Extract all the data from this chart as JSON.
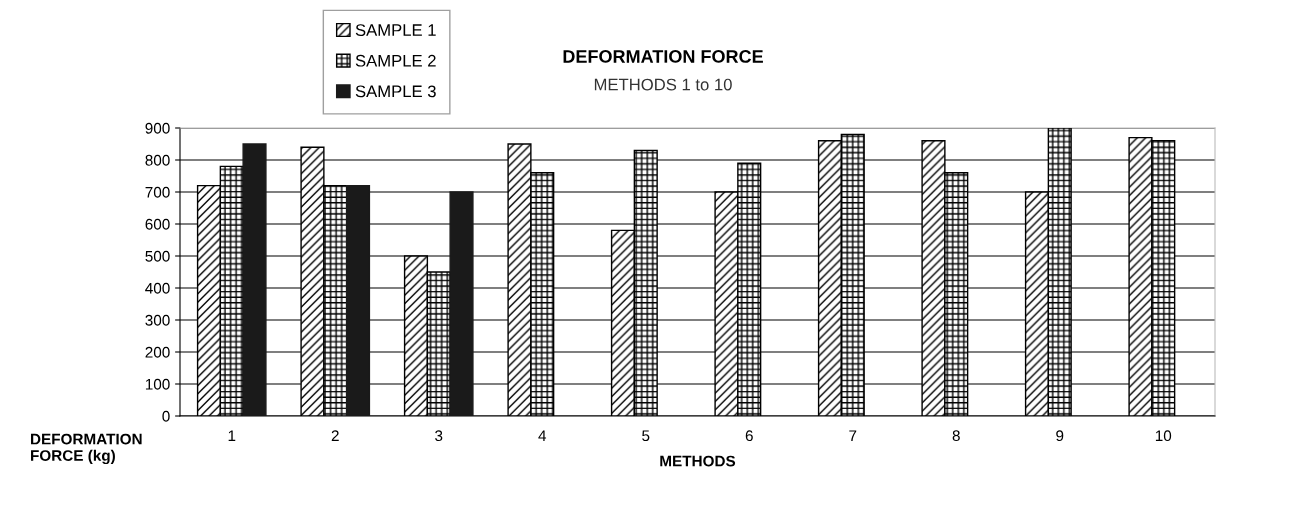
{
  "chart_data": {
    "type": "bar",
    "title": "DEFORMATION FORCE",
    "subtitle": "METHODS 1 to 10",
    "xlabel": "METHODS",
    "ylabel": "DEFORMATION\nFORCE (kg)",
    "categories": [
      "1",
      "2",
      "3",
      "4",
      "5",
      "6",
      "7",
      "8",
      "9",
      "10"
    ],
    "series": [
      {
        "name": "SAMPLE 1",
        "color": "#000000",
        "values": [
          720,
          840,
          500,
          850,
          580,
          700,
          860,
          860,
          700,
          870
        ]
      },
      {
        "name": "SAMPLE 2",
        "color": "#000000",
        "values": [
          780,
          720,
          450,
          760,
          830,
          790,
          880,
          760,
          900,
          860
        ]
      },
      {
        "name": "SAMPLE 3",
        "color": "#1a1a1a",
        "values": [
          850,
          720,
          700,
          null,
          null,
          null,
          null,
          null,
          null,
          null
        ]
      }
    ],
    "ylim": [
      0,
      900
    ],
    "yticks": [
      0,
      100,
      200,
      300,
      400,
      500,
      600,
      700,
      800,
      900
    ],
    "grid": "y",
    "legend": "top left"
  }
}
